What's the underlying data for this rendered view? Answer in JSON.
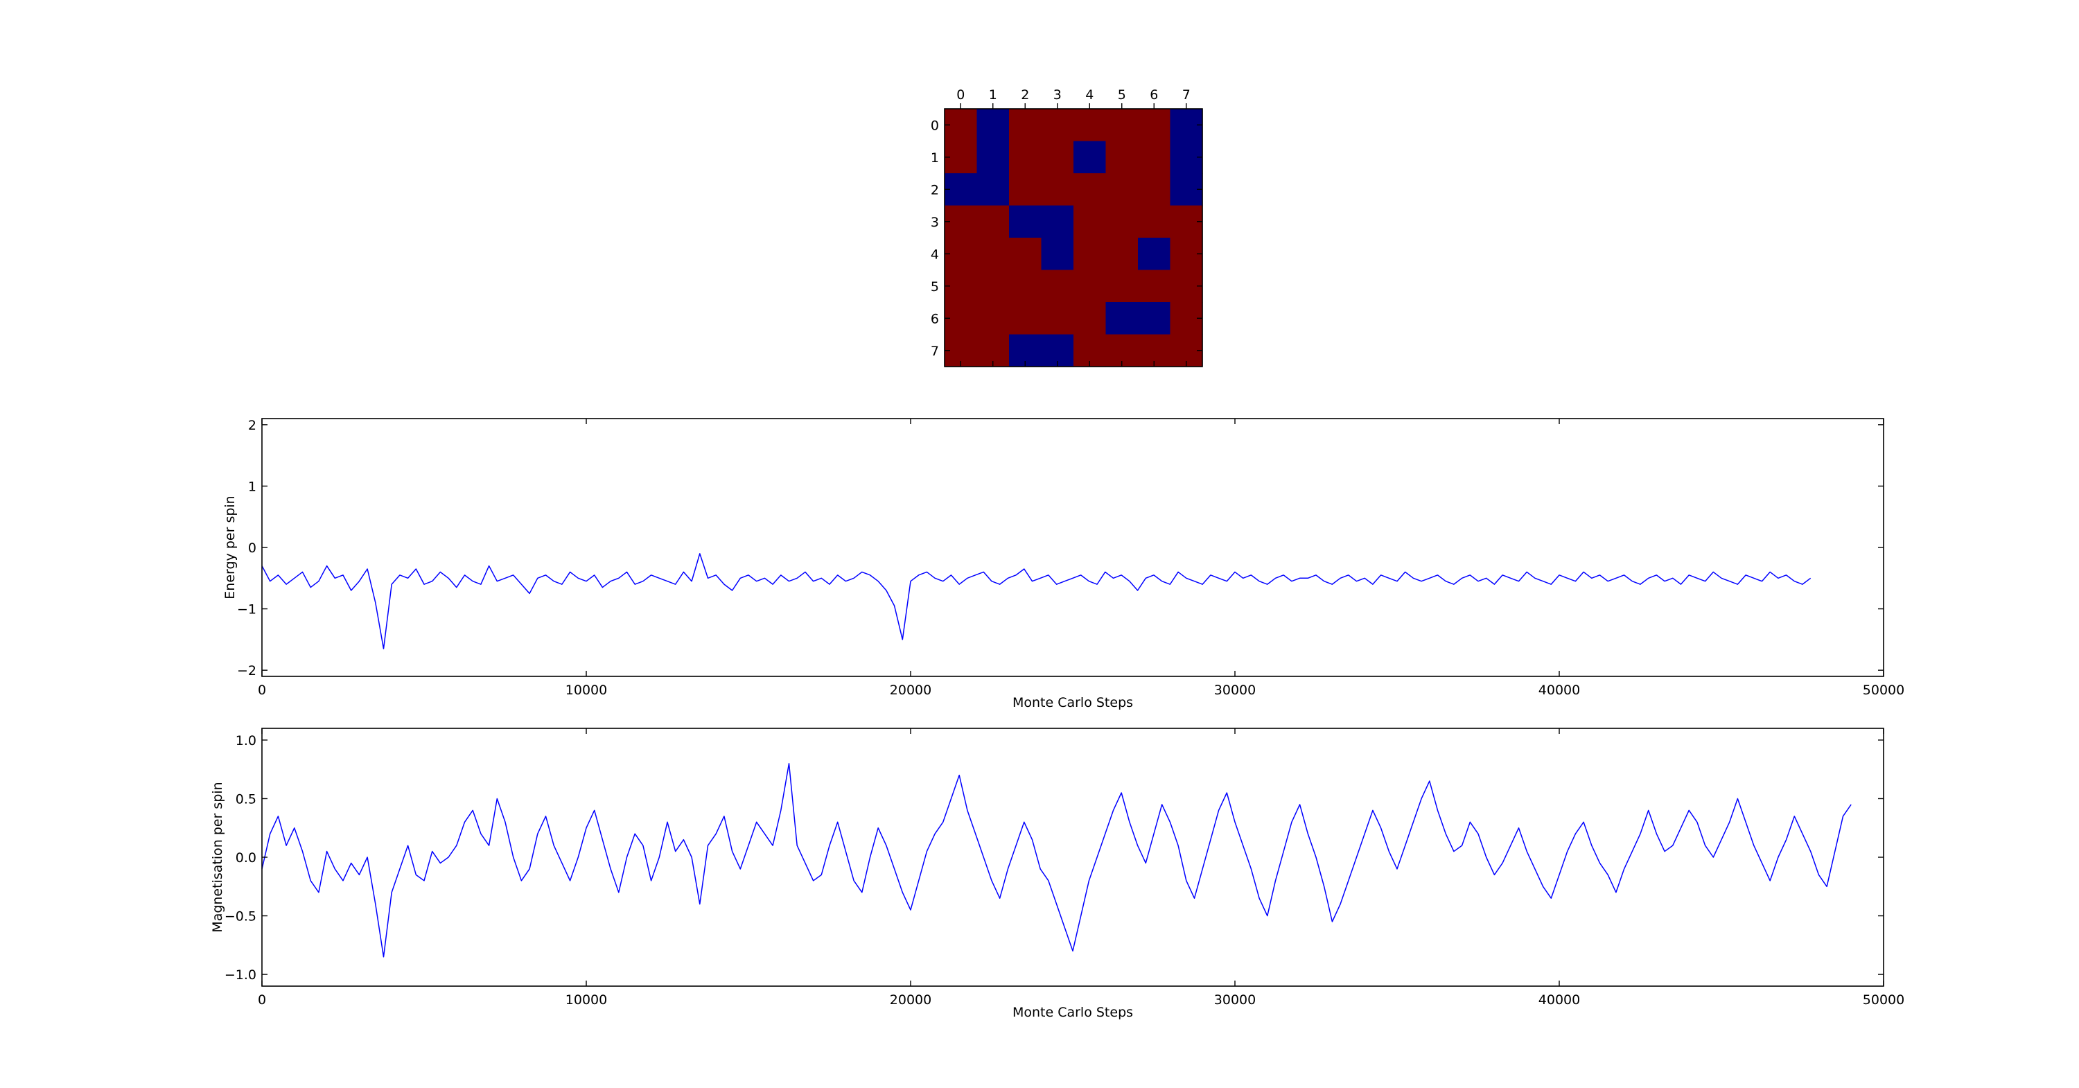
{
  "chart_data": [
    {
      "type": "heatmap",
      "x_ticks": [
        "0",
        "1",
        "2",
        "3",
        "4",
        "5",
        "6",
        "7"
      ],
      "y_ticks": [
        "0",
        "1",
        "2",
        "3",
        "4",
        "5",
        "6",
        "7"
      ],
      "colors": {
        "-1": "#00007f",
        "1": "#7f0000"
      },
      "values": [
        [
          1,
          -1,
          1,
          1,
          1,
          1,
          1,
          -1
        ],
        [
          1,
          -1,
          1,
          1,
          -1,
          1,
          1,
          -1
        ],
        [
          -1,
          -1,
          1,
          1,
          1,
          1,
          1,
          -1
        ],
        [
          1,
          1,
          -1,
          -1,
          1,
          1,
          1,
          1
        ],
        [
          1,
          1,
          1,
          -1,
          1,
          1,
          -1,
          1
        ],
        [
          1,
          1,
          1,
          1,
          1,
          1,
          1,
          1
        ],
        [
          1,
          1,
          1,
          1,
          1,
          -1,
          -1,
          1
        ],
        [
          1,
          1,
          -1,
          -1,
          1,
          1,
          1,
          1
        ]
      ]
    },
    {
      "type": "line",
      "xlabel": "Monte Carlo Steps",
      "ylabel": "Energy per spin",
      "xlim": [
        0,
        50000
      ],
      "ylim": [
        -2.1,
        2.1
      ],
      "x_ticks": [
        0,
        10000,
        20000,
        30000,
        40000,
        50000
      ],
      "y_ticks": [
        -2,
        -1,
        0,
        1,
        2
      ],
      "grid": false,
      "color": "#0000ff",
      "series": [
        {
          "x_step": 250,
          "values": [
            -0.3,
            -0.55,
            -0.45,
            -0.6,
            -0.5,
            -0.4,
            -0.65,
            -0.55,
            -0.3,
            -0.5,
            -0.45,
            -0.7,
            -0.55,
            -0.35,
            -0.9,
            -1.65,
            -0.6,
            -0.45,
            -0.5,
            -0.35,
            -0.6,
            -0.55,
            -0.4,
            -0.5,
            -0.65,
            -0.45,
            -0.55,
            -0.6,
            -0.3,
            -0.55,
            -0.5,
            -0.45,
            -0.6,
            -0.75,
            -0.5,
            -0.45,
            -0.55,
            -0.6,
            -0.4,
            -0.5,
            -0.55,
            -0.45,
            -0.65,
            -0.55,
            -0.5,
            -0.4,
            -0.6,
            -0.55,
            -0.45,
            -0.5,
            -0.55,
            -0.6,
            -0.4,
            -0.55,
            -0.1,
            -0.5,
            -0.45,
            -0.6,
            -0.7,
            -0.5,
            -0.45,
            -0.55,
            -0.5,
            -0.6,
            -0.45,
            -0.55,
            -0.5,
            -0.4,
            -0.55,
            -0.5,
            -0.6,
            -0.45,
            -0.55,
            -0.5,
            -0.4,
            -0.45,
            -0.55,
            -0.7,
            -0.95,
            -1.5,
            -0.55,
            -0.45,
            -0.4,
            -0.5,
            -0.55,
            -0.45,
            -0.6,
            -0.5,
            -0.45,
            -0.4,
            -0.55,
            -0.6,
            -0.5,
            -0.45,
            -0.35,
            -0.55,
            -0.5,
            -0.45,
            -0.6,
            -0.55,
            -0.5,
            -0.45,
            -0.55,
            -0.6,
            -0.4,
            -0.5,
            -0.45,
            -0.55,
            -0.7,
            -0.5,
            -0.45,
            -0.55,
            -0.6,
            -0.4,
            -0.5,
            -0.55,
            -0.6,
            -0.45,
            -0.5,
            -0.55,
            -0.4,
            -0.5,
            -0.45,
            -0.55,
            -0.6,
            -0.5,
            -0.45,
            -0.55,
            -0.5,
            -0.5,
            -0.45,
            -0.55,
            -0.6,
            -0.5,
            -0.45,
            -0.55,
            -0.5,
            -0.6,
            -0.45,
            -0.5,
            -0.55,
            -0.4,
            -0.5,
            -0.55,
            -0.5,
            -0.45,
            -0.55,
            -0.6,
            -0.5,
            -0.45,
            -0.55,
            -0.5,
            -0.6,
            -0.45,
            -0.5,
            -0.55,
            -0.4,
            -0.5,
            -0.55,
            -0.6,
            -0.45,
            -0.5,
            -0.55,
            -0.4,
            -0.5,
            -0.45,
            -0.55,
            -0.5,
            -0.45,
            -0.55,
            -0.6,
            -0.5,
            -0.45,
            -0.55,
            -0.5,
            -0.6,
            -0.45,
            -0.5,
            -0.55,
            -0.4,
            -0.5,
            -0.55,
            -0.6,
            -0.45,
            -0.5,
            -0.55,
            -0.4,
            -0.5,
            -0.45,
            -0.55,
            -0.6,
            -0.5
          ]
        }
      ]
    },
    {
      "type": "line",
      "xlabel": "Monte Carlo Steps",
      "ylabel": "Magnetisation per spin",
      "xlim": [
        0,
        50000
      ],
      "ylim": [
        -1.1,
        1.1
      ],
      "x_ticks": [
        0,
        10000,
        20000,
        30000,
        40000,
        50000
      ],
      "y_ticks": [
        -1.0,
        -0.5,
        0.0,
        0.5,
        1.0
      ],
      "grid": false,
      "color": "#0000ff",
      "series": [
        {
          "x_step": 250,
          "values": [
            -0.1,
            0.2,
            0.35,
            0.1,
            0.25,
            0.05,
            -0.2,
            -0.3,
            0.05,
            -0.1,
            -0.2,
            -0.05,
            -0.15,
            0.0,
            -0.4,
            -0.85,
            -0.3,
            -0.1,
            0.1,
            -0.15,
            -0.2,
            0.05,
            -0.05,
            0.0,
            0.1,
            0.3,
            0.4,
            0.2,
            0.1,
            0.5,
            0.3,
            0.0,
            -0.2,
            -0.1,
            0.2,
            0.35,
            0.1,
            -0.05,
            -0.2,
            0.0,
            0.25,
            0.4,
            0.15,
            -0.1,
            -0.3,
            0.0,
            0.2,
            0.1,
            -0.2,
            0.0,
            0.3,
            0.05,
            0.15,
            0.0,
            -0.4,
            0.1,
            0.2,
            0.35,
            0.05,
            -0.1,
            0.1,
            0.3,
            0.2,
            0.1,
            0.4,
            0.8,
            0.1,
            -0.05,
            -0.2,
            -0.15,
            0.1,
            0.3,
            0.05,
            -0.2,
            -0.3,
            0.0,
            0.25,
            0.1,
            -0.1,
            -0.3,
            -0.45,
            -0.2,
            0.05,
            0.2,
            0.3,
            0.5,
            0.7,
            0.4,
            0.2,
            0.0,
            -0.2,
            -0.35,
            -0.1,
            0.1,
            0.3,
            0.15,
            -0.1,
            -0.2,
            -0.4,
            -0.6,
            -0.8,
            -0.5,
            -0.2,
            0.0,
            0.2,
            0.4,
            0.55,
            0.3,
            0.1,
            -0.05,
            0.2,
            0.45,
            0.3,
            0.1,
            -0.2,
            -0.35,
            -0.1,
            0.15,
            0.4,
            0.55,
            0.3,
            0.1,
            -0.1,
            -0.35,
            -0.5,
            -0.2,
            0.05,
            0.3,
            0.45,
            0.2,
            0.0,
            -0.25,
            -0.55,
            -0.4,
            -0.2,
            0.0,
            0.2,
            0.4,
            0.25,
            0.05,
            -0.1,
            0.1,
            0.3,
            0.5,
            0.65,
            0.4,
            0.2,
            0.05,
            0.1,
            0.3,
            0.2,
            0.0,
            -0.15,
            -0.05,
            0.1,
            0.25,
            0.05,
            -0.1,
            -0.25,
            -0.35,
            -0.15,
            0.05,
            0.2,
            0.3,
            0.1,
            -0.05,
            -0.15,
            -0.3,
            -0.1,
            0.05,
            0.2,
            0.4,
            0.2,
            0.05,
            0.1,
            0.25,
            0.4,
            0.3,
            0.1,
            0.0,
            0.15,
            0.3,
            0.5,
            0.3,
            0.1,
            -0.05,
            -0.2,
            0.0,
            0.15,
            0.35,
            0.2,
            0.05,
            -0.15,
            -0.25,
            0.05,
            0.35,
            0.45
          ]
        }
      ]
    }
  ]
}
